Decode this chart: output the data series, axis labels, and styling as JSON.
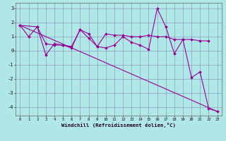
{
  "xlabel": "Windchill (Refroidissement éolien,°C)",
  "background_color": "#b0e8e8",
  "grid_color": "#8888bb",
  "line_color": "#990099",
  "xlim": [
    -0.5,
    23.5
  ],
  "ylim": [
    -4.6,
    3.4
  ],
  "yticks": [
    -4,
    -3,
    -2,
    -1,
    0,
    1,
    2,
    3
  ],
  "xticks": [
    0,
    1,
    2,
    3,
    4,
    5,
    6,
    7,
    8,
    9,
    10,
    11,
    12,
    13,
    14,
    15,
    16,
    17,
    18,
    19,
    20,
    21,
    22,
    23
  ],
  "line1_x": [
    0,
    1,
    2,
    3,
    4,
    5,
    6,
    7,
    8,
    9,
    10,
    11,
    12,
    13,
    14,
    15,
    16,
    17,
    18,
    19,
    20,
    21,
    22,
    23
  ],
  "line1_y": [
    1.8,
    1.0,
    1.7,
    -0.3,
    0.5,
    0.4,
    0.2,
    1.5,
    0.9,
    0.3,
    0.2,
    0.4,
    1.0,
    0.6,
    0.4,
    0.1,
    3.0,
    1.7,
    -0.2,
    0.8,
    -1.9,
    -1.5,
    -4.1,
    -4.3
  ],
  "line2_x": [
    0,
    2,
    3,
    4,
    5,
    6,
    7,
    8,
    9,
    10,
    11,
    12,
    13,
    14,
    15,
    16,
    17,
    18,
    19,
    20,
    21,
    22
  ],
  "line2_y": [
    1.8,
    1.7,
    0.5,
    0.4,
    0.4,
    0.3,
    1.5,
    1.2,
    0.3,
    1.2,
    1.1,
    1.1,
    1.0,
    1.0,
    1.1,
    1.0,
    1.0,
    0.8,
    0.8,
    0.8,
    0.7,
    0.7
  ],
  "line3_x": [
    0,
    23
  ],
  "line3_y": [
    1.8,
    -4.3
  ],
  "lw": 0.8,
  "marker_size": 2.0
}
